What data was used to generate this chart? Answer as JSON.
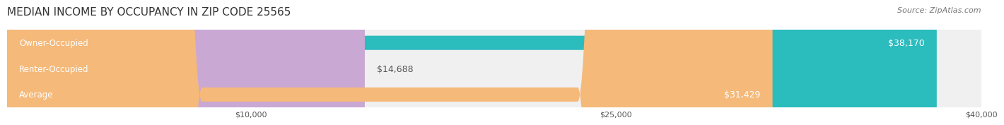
{
  "title": "MEDIAN INCOME BY OCCUPANCY IN ZIP CODE 25565",
  "source": "Source: ZipAtlas.com",
  "categories": [
    "Owner-Occupied",
    "Renter-Occupied",
    "Average"
  ],
  "values": [
    38170,
    14688,
    31429
  ],
  "colors": [
    "#2bbcbe",
    "#c9a8d4",
    "#f5b97a"
  ],
  "bar_labels": [
    "$38,170",
    "$14,688",
    "$31,429"
  ],
  "label_inside": [
    true,
    false,
    true
  ],
  "xlim": [
    0,
    40000
  ],
  "xticks": [
    10000,
    25000,
    40000
  ],
  "xticklabels": [
    "$10,000",
    "$25,000",
    "$40,000"
  ],
  "bar_height": 0.55,
  "bg_color": "#f0f0f0",
  "outer_bg": "#ffffff",
  "title_fontsize": 11,
  "source_fontsize": 8,
  "label_fontsize": 9,
  "category_fontsize": 8.5,
  "tick_fontsize": 8
}
